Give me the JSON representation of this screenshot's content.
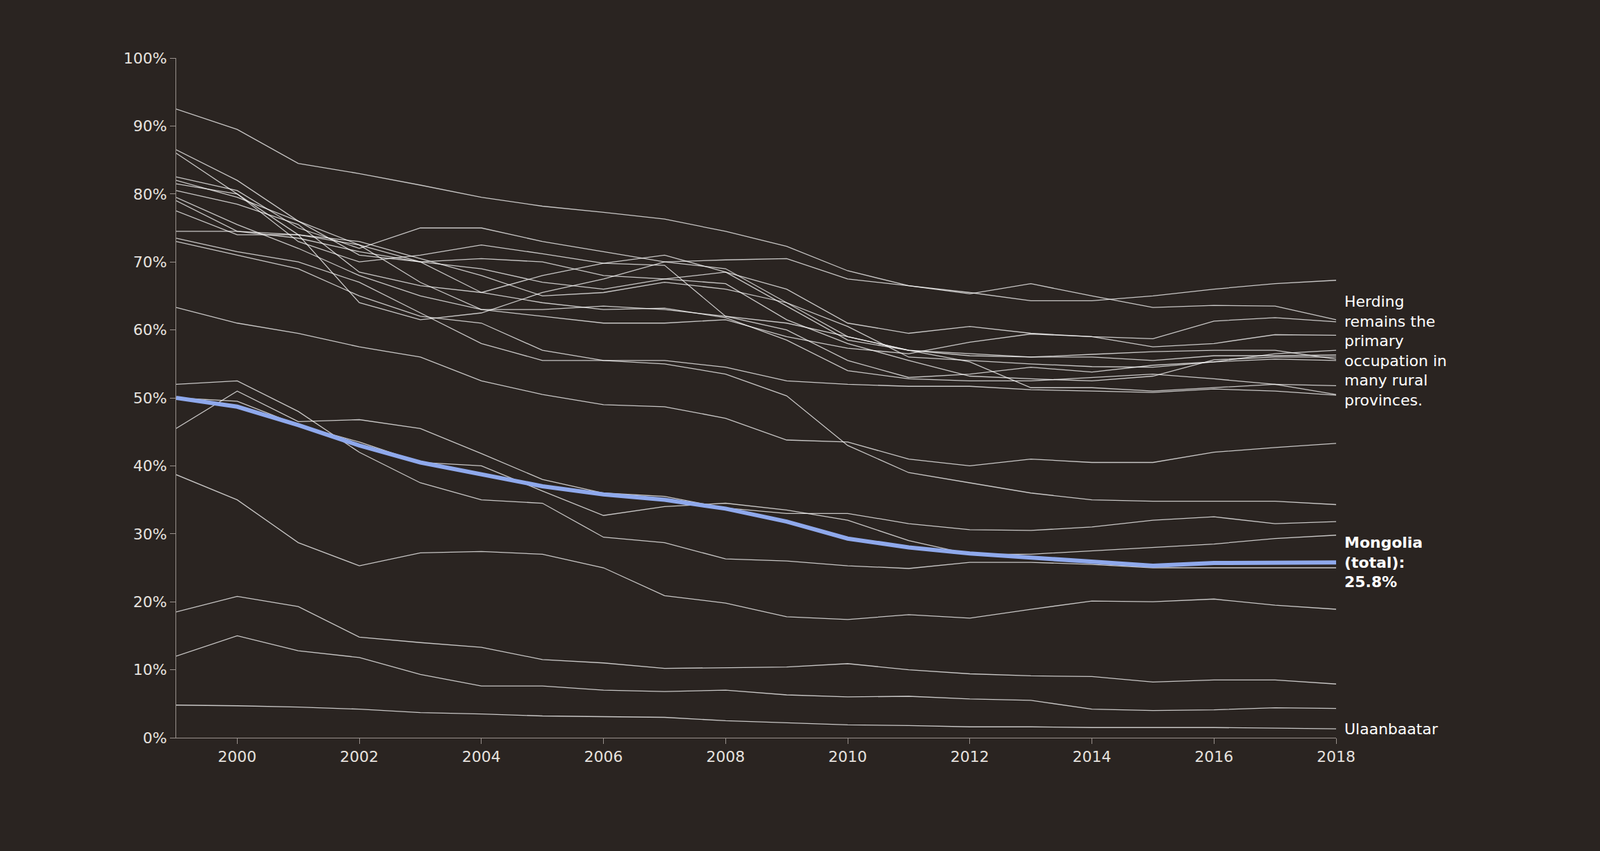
{
  "chart_data": {
    "type": "line",
    "annotation": "Herding remains the primary occupation in many rural provinces.",
    "x": [
      1999,
      2000,
      2001,
      2002,
      2003,
      2004,
      2005,
      2006,
      2007,
      2008,
      2009,
      2010,
      2011,
      2012,
      2013,
      2014,
      2015,
      2016,
      2017,
      2018
    ],
    "xlim": [
      1999,
      2018
    ],
    "xticks": [
      2000,
      2002,
      2004,
      2006,
      2008,
      2010,
      2012,
      2014,
      2016,
      2018
    ],
    "ylim": [
      0,
      100
    ],
    "yticks": [
      {
        "value": 0,
        "label": "0%"
      },
      {
        "value": 10,
        "label": "10%"
      },
      {
        "value": 20,
        "label": "20%"
      },
      {
        "value": 30,
        "label": "30%"
      },
      {
        "value": 40,
        "label": "40%"
      },
      {
        "value": 50,
        "label": "50%"
      },
      {
        "value": 60,
        "label": "60%"
      },
      {
        "value": 70,
        "label": "70%"
      },
      {
        "value": 80,
        "label": "80%"
      },
      {
        "value": 90,
        "label": "90%"
      },
      {
        "value": 100,
        "label": "100%"
      }
    ],
    "grid": false,
    "series": [
      {
        "color": "#ffffff",
        "values": [
          92.5,
          89.5,
          84.5,
          83,
          81.3,
          79.5,
          78.2,
          77.3,
          76.3,
          74.5,
          72.3,
          68.7,
          66.5,
          65.3,
          66.8,
          65,
          63.3,
          63.6,
          63.5,
          61.5
        ]
      },
      {
        "color": "#ffffff",
        "values": [
          86.5,
          82,
          76,
          71,
          70,
          69,
          67,
          66,
          67.5,
          68.5,
          66,
          61,
          59.5,
          60.5,
          59.5,
          59,
          58.7,
          61.3,
          61.8,
          61.2
        ]
      },
      {
        "color": "#ffffff",
        "values": [
          86,
          80,
          74,
          64,
          61.5,
          62.5,
          65.5,
          67.5,
          70,
          70.3,
          70.5,
          67.5,
          66.5,
          65.5,
          64.3,
          64.3,
          65,
          66,
          66.8,
          67.3
        ]
      },
      {
        "color": "#ffffff",
        "values": [
          82.5,
          80.5,
          75,
          72,
          75,
          75,
          73,
          71.5,
          70,
          69,
          64,
          60.5,
          56,
          55.5,
          55,
          54.6,
          54.5,
          55.3,
          56.5,
          57
        ]
      },
      {
        "color": "#ffffff",
        "values": [
          82,
          79.5,
          76,
          72.5,
          70,
          70.5,
          70,
          68,
          67.5,
          66.8,
          61.5,
          58,
          55.5,
          53.2,
          52.8,
          52.5,
          53.2,
          55.6,
          56,
          56
        ]
      },
      {
        "color": "#ffffff",
        "values": [
          81.5,
          80,
          73,
          70,
          71,
          72.5,
          71.2,
          69.8,
          69.5,
          62,
          60,
          55.5,
          53,
          53.5,
          54.5,
          53.8,
          54.8,
          55.3,
          55.7,
          55.5
        ]
      },
      {
        "color": "#ffffff",
        "values": [
          80.5,
          78.5,
          75.5,
          68.5,
          66.5,
          65.5,
          68,
          69.8,
          71,
          68.5,
          63.5,
          58.5,
          57,
          56.5,
          56,
          56,
          55.5,
          56.2,
          56.2,
          56.3
        ]
      },
      {
        "color": "#ffffff",
        "values": [
          79.5,
          75.5,
          72,
          68,
          65,
          63,
          63,
          63.5,
          63,
          62,
          61,
          59,
          57,
          56.2,
          56,
          56.4,
          56.8,
          57,
          57,
          55.7
        ]
      },
      {
        "color": "#ffffff",
        "values": [
          77.5,
          74,
          74,
          73,
          70.5,
          68,
          65,
          65.5,
          67,
          66,
          64,
          59,
          57,
          55.3,
          51.5,
          51.5,
          51,
          51.5,
          52,
          51.8
        ]
      },
      {
        "color": "#ffffff",
        "values": [
          74.5,
          74.5,
          73.5,
          71.5,
          70,
          65.5,
          64,
          63,
          63.2,
          61.8,
          58.5,
          54,
          52.8,
          52.5,
          52.5,
          53,
          53.5,
          52.8,
          52,
          50.5
        ]
      },
      {
        "color": "#ffffff",
        "values": [
          73.5,
          71.5,
          70,
          67,
          62.5,
          58,
          55.5,
          55.5,
          55.5,
          54.5,
          52.5,
          52,
          51.7,
          51.7,
          51.2,
          51,
          50.8,
          51.3,
          51,
          50.4
        ]
      },
      {
        "color": "#ffffff",
        "values": [
          79,
          74.5,
          74,
          72.5,
          67,
          63,
          62,
          61,
          61,
          61.5,
          59,
          57.3,
          56.5,
          58.2,
          59.4,
          59,
          57.5,
          58,
          59.3,
          59.2
        ]
      },
      {
        "color": "#ffffff",
        "values": [
          63.3,
          61,
          59.5,
          57.5,
          56,
          52.5,
          50.5,
          49,
          48.7,
          47,
          43.8,
          43.5,
          41,
          40,
          41,
          40.5,
          40.5,
          42,
          42.7,
          43.3
        ]
      },
      {
        "color": "#ffffff",
        "values": [
          73,
          71,
          69,
          65,
          62,
          61,
          57,
          55.5,
          55,
          53.5,
          50.3,
          43,
          39,
          37.5,
          36,
          35,
          34.8,
          34.8,
          34.8,
          34.3
        ]
      },
      {
        "color": "#ffffff",
        "values": [
          45.5,
          51,
          46.5,
          46.8,
          45.5,
          41.8,
          38,
          36,
          35.5,
          33.8,
          33,
          33,
          31.5,
          30.6,
          30.5,
          31,
          32,
          32.5,
          31.5,
          31.8
        ]
      },
      {
        "color": "#ffffff",
        "values": [
          50,
          49.5,
          46,
          43.5,
          40.5,
          40,
          36.3,
          32.7,
          34,
          34.5,
          33.5,
          32,
          29,
          27,
          27,
          27.5,
          28,
          28.5,
          29.3,
          29.8
        ]
      },
      {
        "color": "#ffffff",
        "values": [
          52,
          52.5,
          48,
          42,
          37.5,
          35,
          34.5,
          29.5,
          28.7,
          26.3,
          26,
          25.3,
          24.9,
          25.8,
          25.8,
          25.5,
          25,
          25,
          25,
          25
        ]
      },
      {
        "color": "#ffffff",
        "values": [
          38.7,
          35,
          28.7,
          25.3,
          27.2,
          27.4,
          27,
          25,
          20.9,
          19.8,
          17.8,
          17.4,
          18.1,
          17.6,
          18.9,
          20.1,
          20,
          20.4,
          19.5,
          18.9
        ]
      },
      {
        "color": "#ffffff",
        "values": [
          18.5,
          20.8,
          19.3,
          14.8,
          14,
          13.3,
          11.5,
          11,
          10.2,
          10.3,
          10.4,
          10.9,
          10,
          9.4,
          9.1,
          9,
          8.2,
          8.5,
          8.5,
          7.9
        ]
      },
      {
        "color": "#ffffff",
        "values": [
          12,
          15,
          12.8,
          11.8,
          9.3,
          7.6,
          7.6,
          7,
          6.8,
          7,
          6.3,
          6,
          6.1,
          5.7,
          5.5,
          4.2,
          4,
          4.1,
          4.4,
          4.3
        ]
      },
      {
        "name": "Ulaanbaatar",
        "color": "#ffffff",
        "values": [
          4.8,
          4.7,
          4.5,
          4.2,
          3.7,
          3.5,
          3.2,
          3.1,
          3.0,
          2.5,
          2.2,
          1.9,
          1.8,
          1.6,
          1.6,
          1.5,
          1.5,
          1.5,
          1.4,
          1.3
        ]
      },
      {
        "name": "Mongolia (total): 25.8%",
        "color": "#8fa9ec",
        "values": [
          50,
          48.7,
          46,
          43,
          40.5,
          38.7,
          37,
          35.8,
          35,
          33.7,
          31.8,
          29.3,
          28,
          27.1,
          26.5,
          25.9,
          25.3,
          25.7,
          25.8,
          25.8
        ]
      }
    ]
  }
}
